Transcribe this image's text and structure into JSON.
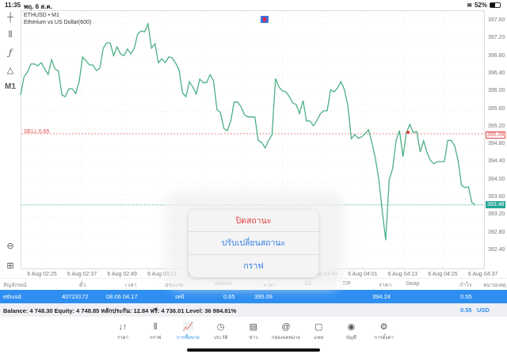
{
  "status": {
    "time": "11:35",
    "date": "พฤ. 6 ส.ค.",
    "battery": "52%",
    "battery_level": 0.52
  },
  "toolbar": {
    "items": [
      "crosshair",
      "indicators-candles",
      "function",
      "objects",
      "M1"
    ],
    "timeframe": "M1"
  },
  "chart": {
    "symbol": "ETHUSD • M1",
    "description": "Etherium vs US Dollar(600)",
    "sell_label": "SELL 0.65"
  },
  "chart_data": {
    "type": "line",
    "color": "#4caf85",
    "y_ticks": [
      "397.60",
      "397.20",
      "396.80",
      "396.40",
      "396.00",
      "395.60",
      "395.20",
      "394.80",
      "394.40",
      "394.00",
      "393.60",
      "393.20",
      "392.80",
      "392.40"
    ],
    "x_ticks": [
      "6 Aug 02:25",
      "6 Aug 02:37",
      "6 Aug 02:49",
      "6 Aug 03:01",
      "6 Aug 03:13",
      "6 Aug 03:25",
      "6 Aug 03:37",
      "6 Aug 03:49",
      "6 Aug 04:01",
      "6 Aug 04:13",
      "6 Aug 04:25",
      "6 Aug 04:37"
    ],
    "ylim": [
      392.2,
      397.9
    ],
    "sell_price": "395.09",
    "sell_price_value": 395.09,
    "bid_price": "393.48",
    "bid_price_value": 393.48,
    "prices": [
      395.97,
      396.38,
      396.49,
      396.67,
      396.67,
      396.63,
      396.7,
      396.56,
      396.43,
      396.77,
      396.56,
      396.51,
      395.97,
      395.93,
      396.11,
      396.11,
      396.0,
      396.27,
      396.83,
      396.74,
      396.65,
      396.65,
      396.52,
      396.58,
      397.03,
      397.15,
      397.15,
      396.86,
      397.06,
      396.9,
      396.86,
      397.01,
      396.9,
      397.03,
      397.35,
      397.42,
      397.4,
      397.58,
      397.03,
      397.13,
      396.7,
      396.79,
      396.7,
      396.83,
      396.81,
      396.69,
      396.54,
      396.02,
      395.93,
      396.27,
      396.15,
      395.99,
      396.33,
      396.25,
      396.25,
      396.43,
      396.29,
      395.64,
      395.57,
      395.21,
      395.16,
      395.38,
      395.81,
      395.81,
      395.7,
      395.52,
      395.47,
      395.47,
      395.47,
      394.94,
      394.89,
      394.77,
      394.94,
      395.07,
      396.34,
      396.15,
      396.06,
      396.04,
      395.93,
      395.79,
      395.75,
      395.55,
      395.84,
      395.38,
      395.38,
      395.27,
      395.39,
      395.54,
      395.61,
      395.61,
      396.09,
      396.04,
      396.13,
      396.27,
      396.09,
      395.73,
      394.98,
      395.07,
      394.99,
      395.02,
      395.09,
      395.18,
      394.89,
      394.53,
      394.05,
      393.33,
      392.68,
      394.05,
      394.3,
      394.94,
      395.16,
      394.57,
      395.12,
      395.3,
      395.12,
      395.14,
      394.68,
      394.93,
      394.66,
      394.48,
      394.41,
      394.46,
      394.46,
      394.46,
      394.94,
      394.94,
      394.82,
      394.48,
      393.92,
      393.87,
      393.89,
      393.53,
      393.48
    ]
  },
  "positions": {
    "headers": [
      "สัญลักษณ์",
      "ตั๋ว",
      "เวลา",
      "ประเภท",
      "Volume",
      "ราคา",
      "S/L",
      "T/P",
      "ราคา",
      "Swap",
      "กำไร",
      "หมายเหตุ"
    ],
    "rows": [
      {
        "symbol": "ethusd",
        "ticket": "40723172",
        "time": "08.06 04:17",
        "type": "sell",
        "volume": "0.65",
        "open_price": "395.09",
        "sl": "",
        "tp": "",
        "price": "394.24",
        "swap": "",
        "profit": "0.55",
        "comment": ""
      }
    ]
  },
  "balance": {
    "text": "Balance: 4 748.30 Equity: 4 748.85 หลักประกัน: 12.84 ฟรี: 4 736.01 Level: 36 984.81%",
    "profit": "0.55",
    "currency": "USD"
  },
  "popup": {
    "items": [
      "ปิดสถานะ",
      "ปรับเปลี่ยนสถานะ",
      "กราฟ"
    ]
  },
  "tabs": [
    {
      "label": "ราคา",
      "icon": "↓↑"
    },
    {
      "label": "กราฟ",
      "icon": "⫴"
    },
    {
      "label": "การซื้อขาย",
      "icon": "📈",
      "active": true
    },
    {
      "label": "ประวัติ",
      "icon": "◷"
    },
    {
      "label": "ข่าว",
      "icon": "▤"
    },
    {
      "label": "กล่องจดหมาย",
      "icon": "@"
    },
    {
      "label": "แชท",
      "icon": "▢"
    },
    {
      "label": "บัญชี",
      "icon": "◉"
    },
    {
      "label": "การตั้งค่า",
      "icon": "⚙"
    }
  ]
}
